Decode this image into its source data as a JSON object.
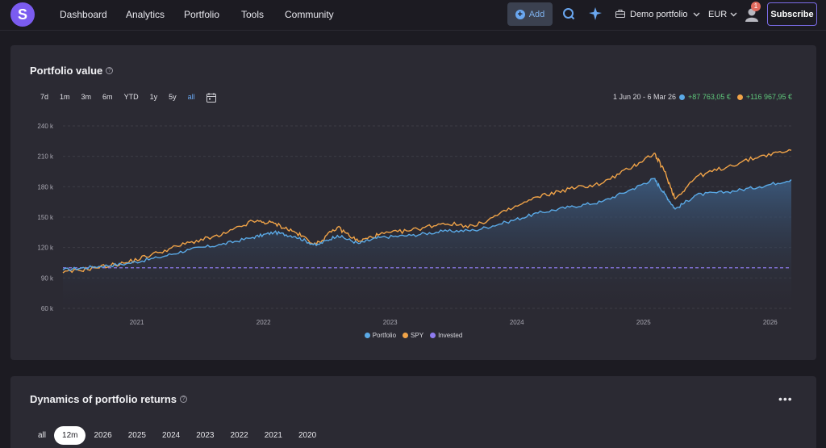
{
  "brand": {
    "logo_letter": "S"
  },
  "nav": {
    "items": [
      "Dashboard",
      "Analytics",
      "Portfolio",
      "Tools",
      "Community"
    ]
  },
  "header": {
    "add_label": "Add",
    "portfolio_label": "Demo portfolio",
    "currency": "EUR",
    "notification_count": "1",
    "subscribe_label": "Subscribe"
  },
  "portfolio_card": {
    "title": "Portfolio value",
    "ranges": [
      "7d",
      "1m",
      "3m",
      "6m",
      "YTD",
      "1y",
      "5y",
      "all"
    ],
    "active_range": "all",
    "period": "1 Jun 20 - 6 Mar 26",
    "portfolio_gain": "+87 763,05 €",
    "spy_gain": "+116 967,95 €"
  },
  "chart_data": {
    "type": "line",
    "xlabel": "",
    "ylabel": "",
    "x_ticks": [
      "2021",
      "2022",
      "2023",
      "2024",
      "2025",
      "2026"
    ],
    "y_ticks": [
      "240 k",
      "210 k",
      "180 k",
      "150 k",
      "120 k",
      "90 k",
      "60 k"
    ],
    "ylim": [
      60000,
      240000
    ],
    "grid": true,
    "legend": "bottom-center",
    "series": [
      {
        "name": "Portfolio",
        "color": "#5aa9e6",
        "points": [
          [
            "2020-06",
            98000
          ],
          [
            "2020-09",
            101000
          ],
          [
            "2020-12",
            104000
          ],
          [
            "2021-03",
            110000
          ],
          [
            "2021-06",
            118000
          ],
          [
            "2021-09",
            123000
          ],
          [
            "2021-12",
            130000
          ],
          [
            "2022-02",
            135000
          ],
          [
            "2022-04",
            131000
          ],
          [
            "2022-06",
            122000
          ],
          [
            "2022-08",
            132000
          ],
          [
            "2022-10",
            124000
          ],
          [
            "2022-12",
            130000
          ],
          [
            "2023-03",
            132000
          ],
          [
            "2023-06",
            136000
          ],
          [
            "2023-09",
            137000
          ],
          [
            "2023-12",
            145000
          ],
          [
            "2024-03",
            154000
          ],
          [
            "2024-06",
            160000
          ],
          [
            "2024-09",
            165000
          ],
          [
            "2024-12",
            178000
          ],
          [
            "2025-02",
            188000
          ],
          [
            "2025-03",
            173000
          ],
          [
            "2025-04",
            158000
          ],
          [
            "2025-06",
            172000
          ],
          [
            "2025-09",
            175000
          ],
          [
            "2025-12",
            180000
          ],
          [
            "2026-03",
            187000
          ]
        ]
      },
      {
        "name": "SPY",
        "color": "#f0a348",
        "points": [
          [
            "2020-06",
            95000
          ],
          [
            "2020-09",
            100000
          ],
          [
            "2020-12",
            105000
          ],
          [
            "2021-03",
            115000
          ],
          [
            "2021-06",
            125000
          ],
          [
            "2021-09",
            132000
          ],
          [
            "2021-12",
            146000
          ],
          [
            "2022-02",
            144000
          ],
          [
            "2022-04",
            135000
          ],
          [
            "2022-06",
            123000
          ],
          [
            "2022-08",
            140000
          ],
          [
            "2022-10",
            126000
          ],
          [
            "2022-12",
            133000
          ],
          [
            "2023-03",
            137000
          ],
          [
            "2023-06",
            144000
          ],
          [
            "2023-09",
            141000
          ],
          [
            "2023-12",
            156000
          ],
          [
            "2024-03",
            170000
          ],
          [
            "2024-06",
            178000
          ],
          [
            "2024-09",
            183000
          ],
          [
            "2024-12",
            200000
          ],
          [
            "2025-02",
            213000
          ],
          [
            "2025-03",
            195000
          ],
          [
            "2025-04",
            168000
          ],
          [
            "2025-06",
            190000
          ],
          [
            "2025-09",
            200000
          ],
          [
            "2025-12",
            210000
          ],
          [
            "2026-03",
            216000
          ]
        ]
      },
      {
        "name": "Invested",
        "color": "#8f7cf0",
        "points": [
          [
            "2020-06",
            100000
          ],
          [
            "2026-03",
            100000
          ]
        ]
      }
    ]
  },
  "returns_card": {
    "title": "Dynamics of portfolio returns",
    "periods": [
      "all",
      "12m",
      "2026",
      "2025",
      "2024",
      "2023",
      "2022",
      "2021",
      "2020"
    ],
    "active_period": "12m",
    "menu_glyph": "•••"
  },
  "colors": {
    "accent": "#7b5cf0",
    "portfolio": "#5aa9e6",
    "spy": "#f0a348",
    "invested": "#8f7cf0",
    "gain": "#5fc77b"
  },
  "icons": [
    "search-icon",
    "rocket-icon",
    "briefcase-icon",
    "chevron-down-icon",
    "user-icon",
    "calendar-icon",
    "help-icon"
  ]
}
